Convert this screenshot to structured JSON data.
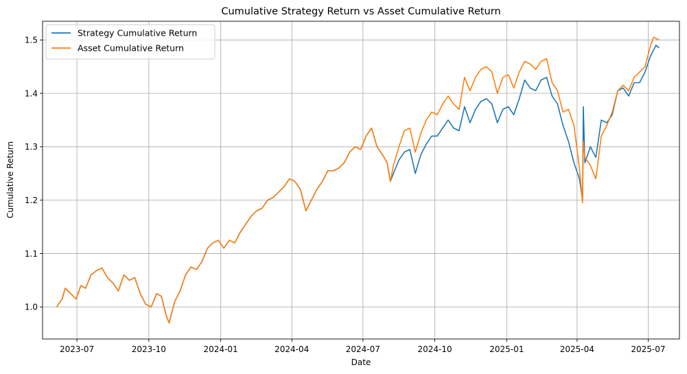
{
  "chart_data": {
    "type": "line",
    "title": "Cumulative Strategy Return vs Asset Cumulative Return",
    "xlabel": "Date",
    "ylabel": "Cumulative Return",
    "xlim": [
      "2023-05-18",
      "2025-08-10"
    ],
    "ylim": [
      0.94,
      1.535
    ],
    "grid": true,
    "legend_position": "top-left",
    "x_ticks": [
      {
        "date": "2023-07-01",
        "label": "2023-07"
      },
      {
        "date": "2023-10-01",
        "label": "2023-10"
      },
      {
        "date": "2024-01-01",
        "label": "2024-01"
      },
      {
        "date": "2024-04-01",
        "label": "2024-04"
      },
      {
        "date": "2024-07-01",
        "label": "2024-07"
      },
      {
        "date": "2024-10-01",
        "label": "2024-10"
      },
      {
        "date": "2025-01-01",
        "label": "2025-01"
      },
      {
        "date": "2025-04-01",
        "label": "2025-04"
      },
      {
        "date": "2025-07-01",
        "label": "2025-07"
      }
    ],
    "y_ticks": [
      {
        "value": 1.0,
        "label": "1.0"
      },
      {
        "value": 1.1,
        "label": "1.1"
      },
      {
        "value": 1.2,
        "label": "1.2"
      },
      {
        "value": 1.3,
        "label": "1.3"
      },
      {
        "value": 1.4,
        "label": "1.4"
      },
      {
        "value": 1.5,
        "label": "1.5"
      }
    ],
    "series": [
      {
        "name": "Strategy Cumulative Return",
        "color": "#1f77b4",
        "points": [
          [
            "2023-06-05",
            1.0
          ],
          [
            "2023-06-12",
            1.015
          ],
          [
            "2023-06-16",
            1.035
          ],
          [
            "2023-06-23",
            1.025
          ],
          [
            "2023-06-30",
            1.015
          ],
          [
            "2023-07-06",
            1.04
          ],
          [
            "2023-07-12",
            1.035
          ],
          [
            "2023-07-19",
            1.06
          ],
          [
            "2023-07-26",
            1.068
          ],
          [
            "2023-08-02",
            1.073
          ],
          [
            "2023-08-09",
            1.055
          ],
          [
            "2023-08-16",
            1.045
          ],
          [
            "2023-08-23",
            1.03
          ],
          [
            "2023-08-30",
            1.06
          ],
          [
            "2023-09-06",
            1.05
          ],
          [
            "2023-09-13",
            1.055
          ],
          [
            "2023-09-20",
            1.025
          ],
          [
            "2023-09-27",
            1.005
          ],
          [
            "2023-10-04",
            1.0
          ],
          [
            "2023-10-11",
            1.025
          ],
          [
            "2023-10-17",
            1.02
          ],
          [
            "2023-10-23",
            0.985
          ],
          [
            "2023-10-27",
            0.97
          ],
          [
            "2023-11-03",
            1.01
          ],
          [
            "2023-11-10",
            1.03
          ],
          [
            "2023-11-17",
            1.06
          ],
          [
            "2023-11-24",
            1.075
          ],
          [
            "2023-12-01",
            1.07
          ],
          [
            "2023-12-08",
            1.085
          ],
          [
            "2023-12-15",
            1.11
          ],
          [
            "2023-12-22",
            1.12
          ],
          [
            "2023-12-29",
            1.125
          ],
          [
            "2024-01-05",
            1.11
          ],
          [
            "2024-01-12",
            1.125
          ],
          [
            "2024-01-19",
            1.12
          ],
          [
            "2024-01-26",
            1.14
          ],
          [
            "2024-02-02",
            1.155
          ],
          [
            "2024-02-09",
            1.17
          ],
          [
            "2024-02-16",
            1.18
          ],
          [
            "2024-02-23",
            1.185
          ],
          [
            "2024-03-01",
            1.2
          ],
          [
            "2024-03-08",
            1.205
          ],
          [
            "2024-03-15",
            1.215
          ],
          [
            "2024-03-22",
            1.225
          ],
          [
            "2024-03-29",
            1.24
          ],
          [
            "2024-04-05",
            1.235
          ],
          [
            "2024-04-12",
            1.22
          ],
          [
            "2024-04-19",
            1.18
          ],
          [
            "2024-04-26",
            1.2
          ],
          [
            "2024-05-03",
            1.22
          ],
          [
            "2024-05-10",
            1.235
          ],
          [
            "2024-05-17",
            1.255
          ],
          [
            "2024-05-24",
            1.255
          ],
          [
            "2024-05-31",
            1.26
          ],
          [
            "2024-06-07",
            1.27
          ],
          [
            "2024-06-14",
            1.29
          ],
          [
            "2024-06-21",
            1.3
          ],
          [
            "2024-06-28",
            1.295
          ],
          [
            "2024-07-05",
            1.32
          ],
          [
            "2024-07-12",
            1.335
          ],
          [
            "2024-07-19",
            1.3
          ],
          [
            "2024-07-26",
            1.285
          ],
          [
            "2024-08-01",
            1.27
          ],
          [
            "2024-08-05",
            1.235
          ],
          [
            "2024-08-09",
            1.25
          ],
          [
            "2024-08-16",
            1.275
          ],
          [
            "2024-08-23",
            1.29
          ],
          [
            "2024-08-30",
            1.295
          ],
          [
            "2024-09-06",
            1.25
          ],
          [
            "2024-09-13",
            1.285
          ],
          [
            "2024-09-20",
            1.305
          ],
          [
            "2024-09-27",
            1.32
          ],
          [
            "2024-10-04",
            1.32
          ],
          [
            "2024-10-11",
            1.335
          ],
          [
            "2024-10-18",
            1.35
          ],
          [
            "2024-10-25",
            1.335
          ],
          [
            "2024-11-01",
            1.33
          ],
          [
            "2024-11-08",
            1.375
          ],
          [
            "2024-11-15",
            1.345
          ],
          [
            "2024-11-22",
            1.37
          ],
          [
            "2024-11-29",
            1.385
          ],
          [
            "2024-12-06",
            1.39
          ],
          [
            "2024-12-13",
            1.38
          ],
          [
            "2024-12-20",
            1.345
          ],
          [
            "2024-12-27",
            1.37
          ],
          [
            "2025-01-03",
            1.375
          ],
          [
            "2025-01-10",
            1.36
          ],
          [
            "2025-01-17",
            1.39
          ],
          [
            "2025-01-24",
            1.425
          ],
          [
            "2025-01-31",
            1.41
          ],
          [
            "2025-02-07",
            1.405
          ],
          [
            "2025-02-14",
            1.425
          ],
          [
            "2025-02-21",
            1.43
          ],
          [
            "2025-02-28",
            1.395
          ],
          [
            "2025-03-07",
            1.38
          ],
          [
            "2025-03-14",
            1.34
          ],
          [
            "2025-03-21",
            1.31
          ],
          [
            "2025-03-28",
            1.27
          ],
          [
            "2025-04-04",
            1.24
          ],
          [
            "2025-04-08",
            1.2
          ],
          [
            "2025-04-09",
            1.375
          ],
          [
            "2025-04-11",
            1.27
          ],
          [
            "2025-04-18",
            1.3
          ],
          [
            "2025-04-25",
            1.28
          ],
          [
            "2025-05-02",
            1.35
          ],
          [
            "2025-05-09",
            1.345
          ],
          [
            "2025-05-16",
            1.36
          ],
          [
            "2025-05-23",
            1.405
          ],
          [
            "2025-05-30",
            1.41
          ],
          [
            "2025-06-06",
            1.395
          ],
          [
            "2025-06-13",
            1.42
          ],
          [
            "2025-06-20",
            1.42
          ],
          [
            "2025-06-27",
            1.44
          ],
          [
            "2025-07-04",
            1.47
          ],
          [
            "2025-07-11",
            1.49
          ],
          [
            "2025-07-15",
            1.485
          ]
        ]
      },
      {
        "name": "Asset Cumulative Return",
        "color": "#ff7f0e",
        "points": [
          [
            "2023-06-05",
            1.0
          ],
          [
            "2023-06-12",
            1.015
          ],
          [
            "2023-06-16",
            1.035
          ],
          [
            "2023-06-23",
            1.025
          ],
          [
            "2023-06-30",
            1.015
          ],
          [
            "2023-07-06",
            1.04
          ],
          [
            "2023-07-12",
            1.035
          ],
          [
            "2023-07-19",
            1.06
          ],
          [
            "2023-07-26",
            1.068
          ],
          [
            "2023-08-02",
            1.073
          ],
          [
            "2023-08-09",
            1.055
          ],
          [
            "2023-08-16",
            1.045
          ],
          [
            "2023-08-23",
            1.03
          ],
          [
            "2023-08-30",
            1.06
          ],
          [
            "2023-09-06",
            1.05
          ],
          [
            "2023-09-13",
            1.055
          ],
          [
            "2023-09-20",
            1.025
          ],
          [
            "2023-09-27",
            1.005
          ],
          [
            "2023-10-04",
            1.0
          ],
          [
            "2023-10-11",
            1.025
          ],
          [
            "2023-10-17",
            1.02
          ],
          [
            "2023-10-23",
            0.985
          ],
          [
            "2023-10-27",
            0.97
          ],
          [
            "2023-11-03",
            1.01
          ],
          [
            "2023-11-10",
            1.03
          ],
          [
            "2023-11-17",
            1.06
          ],
          [
            "2023-11-24",
            1.075
          ],
          [
            "2023-12-01",
            1.07
          ],
          [
            "2023-12-08",
            1.085
          ],
          [
            "2023-12-15",
            1.11
          ],
          [
            "2023-12-22",
            1.12
          ],
          [
            "2023-12-29",
            1.125
          ],
          [
            "2024-01-05",
            1.11
          ],
          [
            "2024-01-12",
            1.125
          ],
          [
            "2024-01-19",
            1.12
          ],
          [
            "2024-01-26",
            1.14
          ],
          [
            "2024-02-02",
            1.155
          ],
          [
            "2024-02-09",
            1.17
          ],
          [
            "2024-02-16",
            1.18
          ],
          [
            "2024-02-23",
            1.185
          ],
          [
            "2024-03-01",
            1.2
          ],
          [
            "2024-03-08",
            1.205
          ],
          [
            "2024-03-15",
            1.215
          ],
          [
            "2024-03-22",
            1.225
          ],
          [
            "2024-03-29",
            1.24
          ],
          [
            "2024-04-05",
            1.235
          ],
          [
            "2024-04-12",
            1.22
          ],
          [
            "2024-04-19",
            1.18
          ],
          [
            "2024-04-26",
            1.2
          ],
          [
            "2024-05-03",
            1.22
          ],
          [
            "2024-05-10",
            1.235
          ],
          [
            "2024-05-17",
            1.255
          ],
          [
            "2024-05-24",
            1.255
          ],
          [
            "2024-05-31",
            1.26
          ],
          [
            "2024-06-07",
            1.27
          ],
          [
            "2024-06-14",
            1.29
          ],
          [
            "2024-06-21",
            1.3
          ],
          [
            "2024-06-28",
            1.295
          ],
          [
            "2024-07-05",
            1.32
          ],
          [
            "2024-07-12",
            1.335
          ],
          [
            "2024-07-19",
            1.3
          ],
          [
            "2024-07-26",
            1.285
          ],
          [
            "2024-08-01",
            1.27
          ],
          [
            "2024-08-05",
            1.235
          ],
          [
            "2024-08-09",
            1.265
          ],
          [
            "2024-08-16",
            1.3
          ],
          [
            "2024-08-23",
            1.33
          ],
          [
            "2024-08-30",
            1.335
          ],
          [
            "2024-09-06",
            1.29
          ],
          [
            "2024-09-13",
            1.325
          ],
          [
            "2024-09-20",
            1.35
          ],
          [
            "2024-09-27",
            1.365
          ],
          [
            "2024-10-04",
            1.36
          ],
          [
            "2024-10-11",
            1.38
          ],
          [
            "2024-10-18",
            1.395
          ],
          [
            "2024-10-25",
            1.38
          ],
          [
            "2024-11-01",
            1.37
          ],
          [
            "2024-11-08",
            1.43
          ],
          [
            "2024-11-15",
            1.405
          ],
          [
            "2024-11-22",
            1.43
          ],
          [
            "2024-11-29",
            1.445
          ],
          [
            "2024-12-06",
            1.45
          ],
          [
            "2024-12-13",
            1.44
          ],
          [
            "2024-12-20",
            1.4
          ],
          [
            "2024-12-27",
            1.43
          ],
          [
            "2025-01-03",
            1.435
          ],
          [
            "2025-01-10",
            1.41
          ],
          [
            "2025-01-17",
            1.44
          ],
          [
            "2025-01-24",
            1.46
          ],
          [
            "2025-01-31",
            1.455
          ],
          [
            "2025-02-07",
            1.445
          ],
          [
            "2025-02-14",
            1.46
          ],
          [
            "2025-02-21",
            1.465
          ],
          [
            "2025-02-28",
            1.42
          ],
          [
            "2025-03-07",
            1.405
          ],
          [
            "2025-03-14",
            1.365
          ],
          [
            "2025-03-21",
            1.37
          ],
          [
            "2025-03-28",
            1.34
          ],
          [
            "2025-04-04",
            1.26
          ],
          [
            "2025-04-08",
            1.195
          ],
          [
            "2025-04-09",
            1.31
          ],
          [
            "2025-04-11",
            1.28
          ],
          [
            "2025-04-18",
            1.265
          ],
          [
            "2025-04-25",
            1.24
          ],
          [
            "2025-05-02",
            1.32
          ],
          [
            "2025-05-09",
            1.34
          ],
          [
            "2025-05-16",
            1.365
          ],
          [
            "2025-05-23",
            1.405
          ],
          [
            "2025-05-30",
            1.415
          ],
          [
            "2025-06-06",
            1.405
          ],
          [
            "2025-06-13",
            1.43
          ],
          [
            "2025-06-20",
            1.44
          ],
          [
            "2025-06-27",
            1.45
          ],
          [
            "2025-07-04",
            1.49
          ],
          [
            "2025-07-08",
            1.505
          ],
          [
            "2025-07-15",
            1.5
          ]
        ]
      }
    ]
  }
}
